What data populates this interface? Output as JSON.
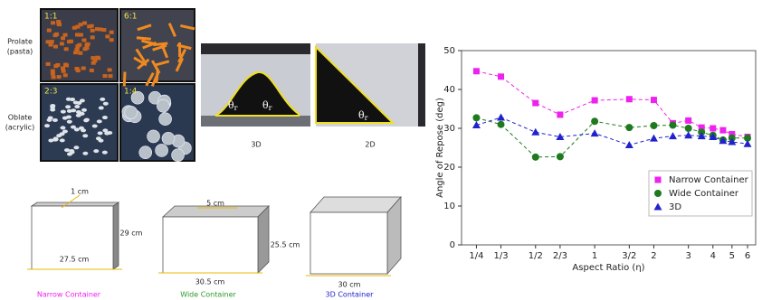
{
  "photos": {
    "rows": [
      {
        "label": [
          "Prolate",
          "(pasta)"
        ],
        "tiles": [
          "1:1",
          "6:1"
        ]
      },
      {
        "label": [
          "Oblate",
          "(acrylic)"
        ],
        "tiles": [
          "2:3",
          "1:4"
        ]
      }
    ]
  },
  "piles": [
    {
      "caption": "3D",
      "symbol": "θ",
      "subscript": "r"
    },
    {
      "caption": "2D",
      "symbol": "θ",
      "subscript": "r"
    }
  ],
  "containers": [
    {
      "dims": [
        "1 cm",
        "29 cm",
        "27.5 cm"
      ],
      "caption": "Narrow Container"
    },
    {
      "dims": [
        "5 cm",
        "25.5 cm",
        "30.5 cm"
      ],
      "caption": "Wide Container"
    },
    {
      "dims": [
        "30 cm"
      ],
      "caption": "3D Container"
    }
  ],
  "chart_data": {
    "type": "line",
    "x_label": "Aspect Ratio (η)",
    "y_label": "Angle of Repose (deg)",
    "x": [
      0.25,
      0.3333,
      0.5,
      0.6667,
      1,
      1.5,
      2,
      2.5,
      3,
      3.5,
      4,
      4.5,
      5,
      6
    ],
    "series": [
      {
        "name": "Narrow Container",
        "color": "#ee22ee",
        "marker": "square",
        "values": [
          44.7,
          43.3,
          36.5,
          33.5,
          37.2,
          37.5,
          37.3,
          31.3,
          32.0,
          30.2,
          30.0,
          29.5,
          28.5,
          27.8
        ]
      },
      {
        "name": "Wide Container",
        "color": "#1e7a1e",
        "marker": "circle",
        "values": [
          32.7,
          31.0,
          22.6,
          22.7,
          31.8,
          30.2,
          30.7,
          30.8,
          30.0,
          29.0,
          28.2,
          27.0,
          27.5,
          27.5
        ]
      },
      {
        "name": "3D",
        "color": "#2222cc",
        "marker": "triangle",
        "values": [
          30.8,
          32.8,
          29.0,
          27.8,
          28.7,
          25.7,
          27.4,
          28.0,
          28.2,
          28.0,
          27.8,
          26.8,
          26.5,
          26.0
        ]
      }
    ],
    "xscale": "log",
    "xlim": [
      0.21,
      6.6
    ],
    "ylim": [
      0,
      50
    ],
    "xticks": [
      {
        "value": 0.25,
        "label": "1/4"
      },
      {
        "value": 0.3333,
        "label": "1/3"
      },
      {
        "value": 0.5,
        "label": "1/2"
      },
      {
        "value": 0.6667,
        "label": "2/3"
      },
      1,
      {
        "value": 1.5,
        "label": "3/2"
      },
      2,
      3,
      4,
      5,
      6
    ],
    "yticks": [
      0,
      10,
      20,
      30,
      40,
      50
    ],
    "grid": false,
    "legend": "lower right"
  }
}
